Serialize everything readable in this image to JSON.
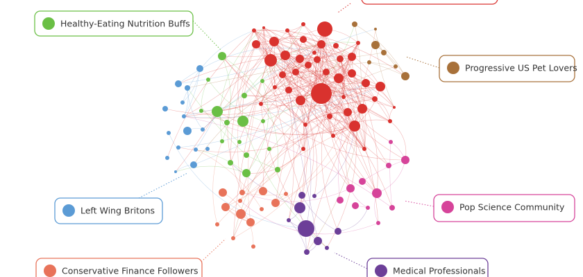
{
  "communities": [
    {
      "label": "Healthy-Eating Nutrition Buffs",
      "color": "#6abf45"
    },
    {
      "label": "Progressive US Pet Lovers",
      "color": "#a8713a"
    },
    {
      "label": "Pop Science Community",
      "color": "#d6449a"
    },
    {
      "label": "Left Wing Britons",
      "color": "#5b9bd5"
    },
    {
      "label": "Conservative Finance Followers",
      "color": "#e8735a"
    },
    {
      "label": "Medical Professionals",
      "color": "#6c3f98"
    },
    {
      "color": "#d9322e"
    }
  ]
}
